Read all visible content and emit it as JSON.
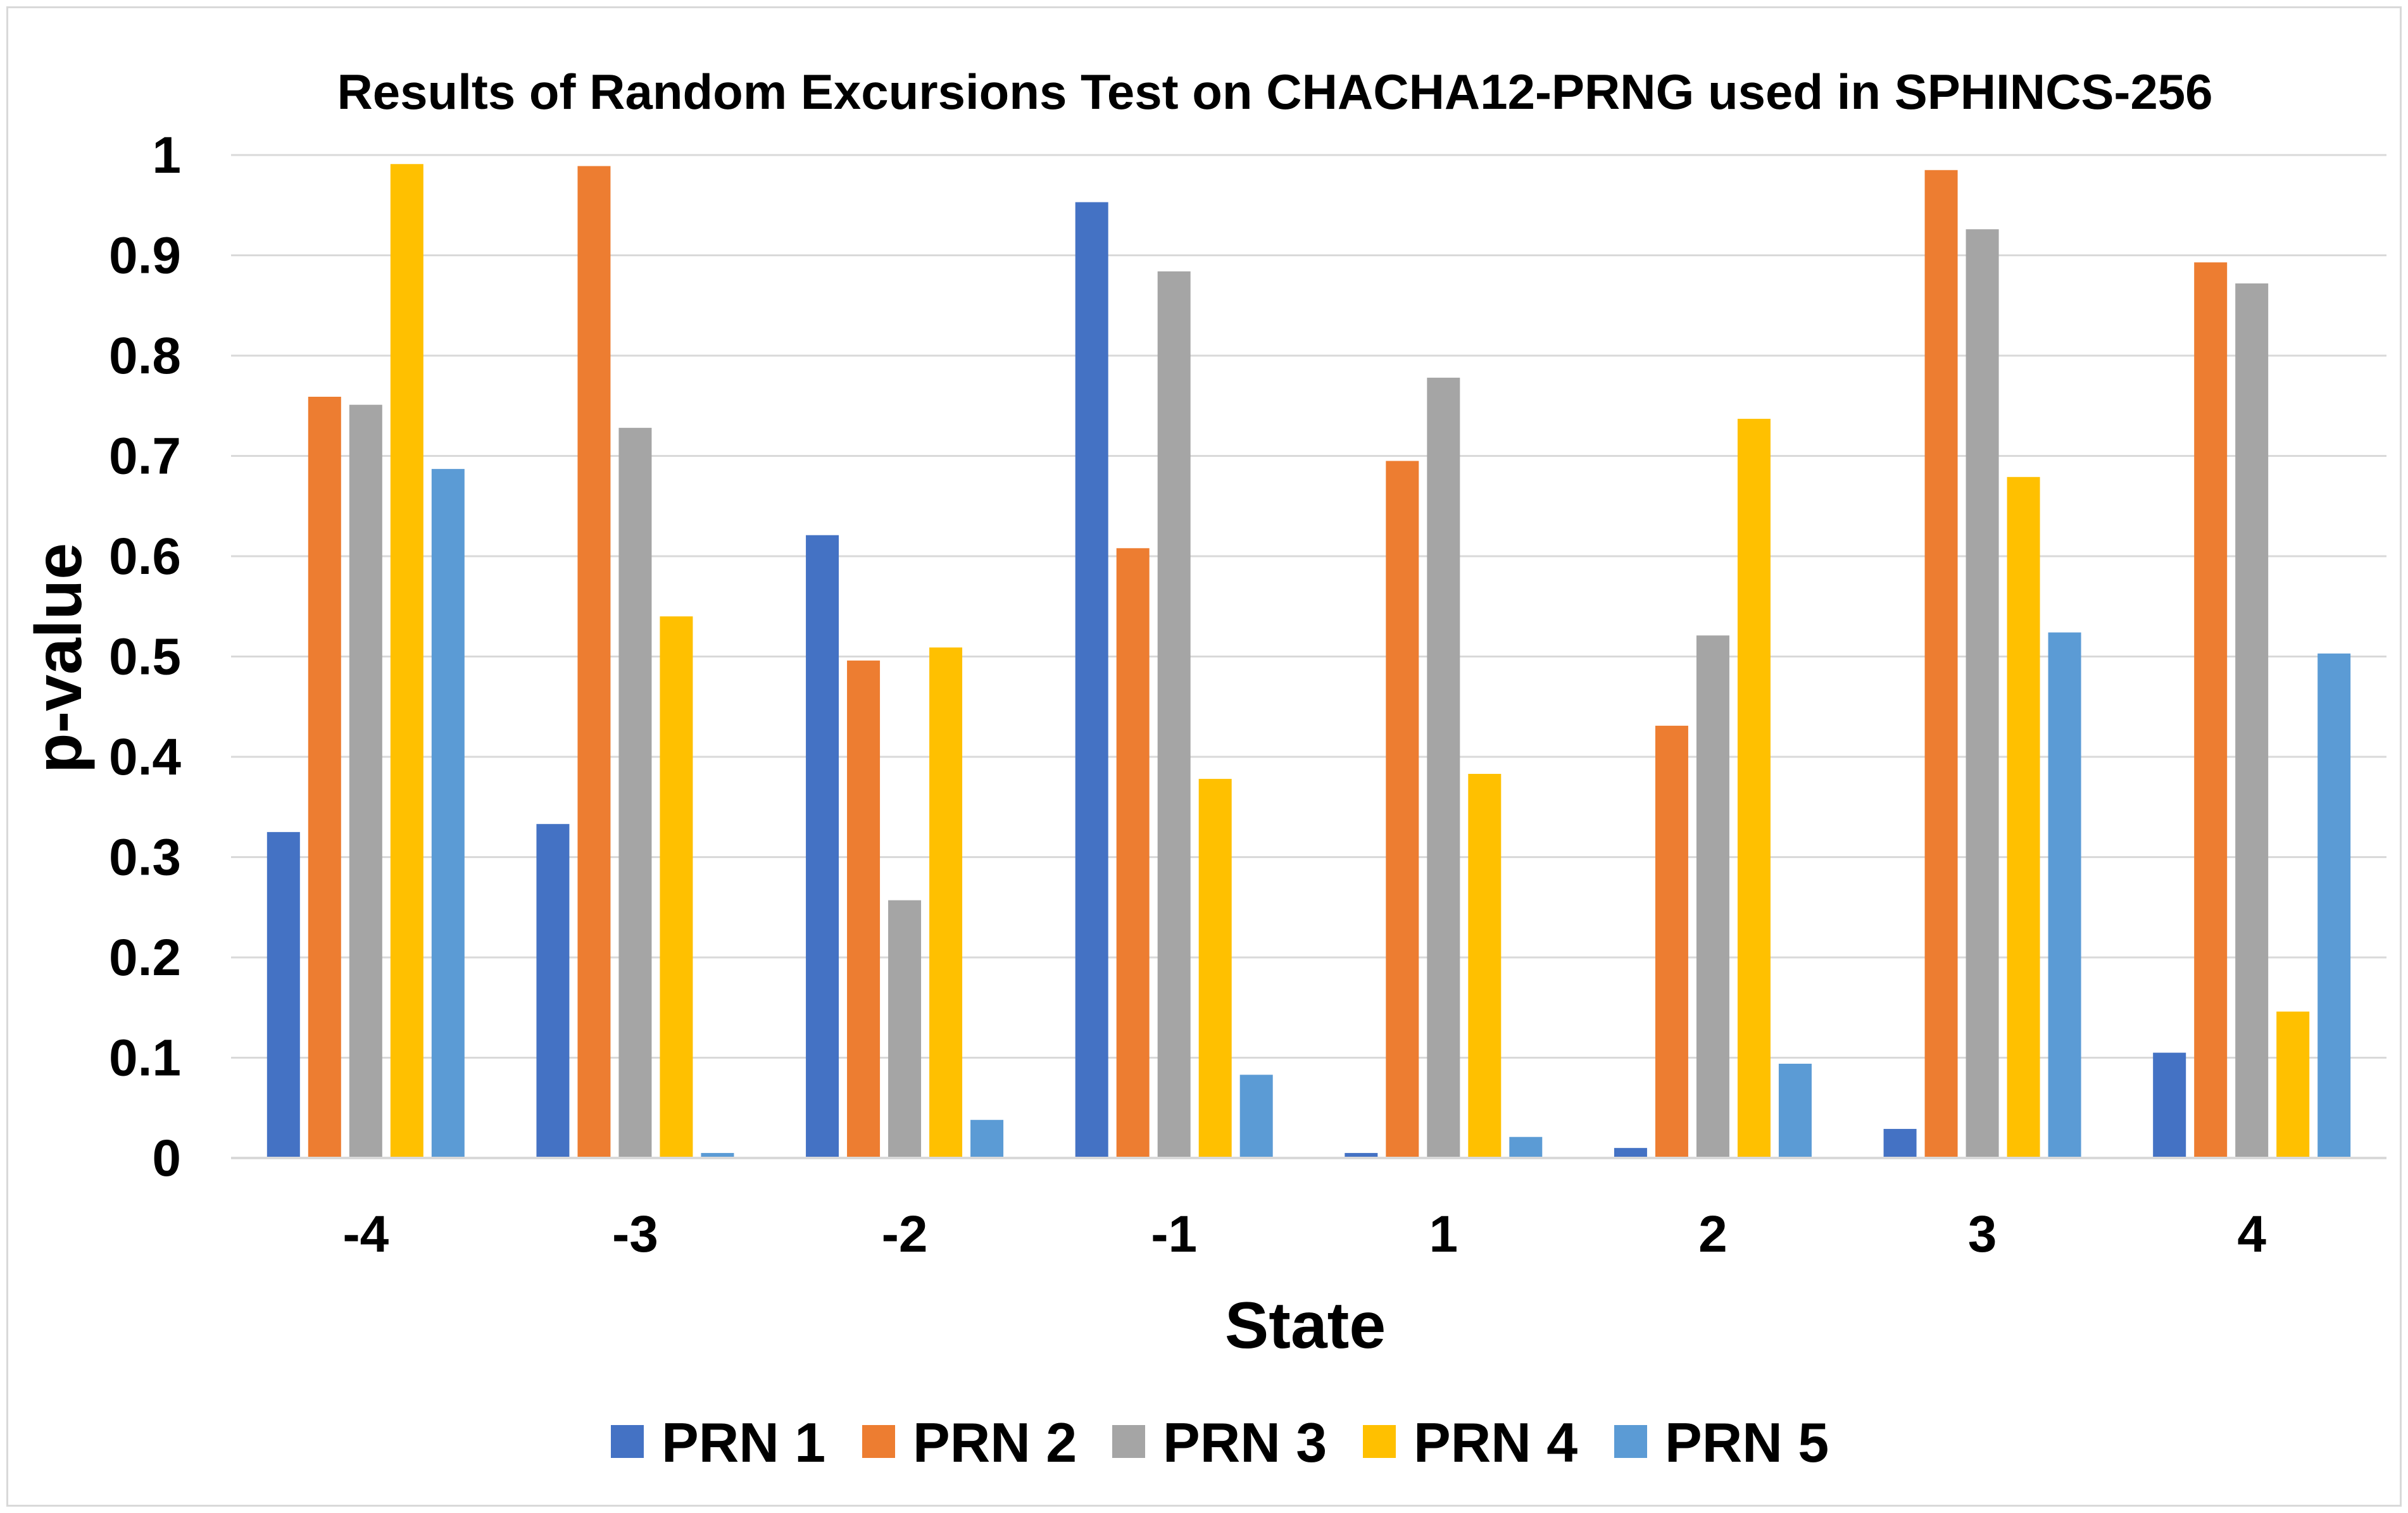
{
  "chart_data": {
    "type": "bar",
    "title": "Results of Random Excursions Test on CHACHA12-PRNG used in SPHINCS-256",
    "xlabel": "State",
    "ylabel": "p-value",
    "ylim": [
      0,
      1
    ],
    "yticks": [
      "0",
      "0.1",
      "0.2",
      "0.3",
      "0.4",
      "0.5",
      "0.6",
      "0.7",
      "0.8",
      "0.9",
      "1"
    ],
    "grid": true,
    "legend_position": "bottom",
    "categories": [
      "-4",
      "-3",
      "-2",
      "-1",
      "1",
      "2",
      "3",
      "4"
    ],
    "series": [
      {
        "name": "PRN 1",
        "color": "#4472C4",
        "values": [
          0.325,
          0.333,
          0.621,
          0.953,
          0.005,
          0.01,
          0.029,
          0.105
        ]
      },
      {
        "name": "PRN 2",
        "color": "#ED7D31",
        "values": [
          0.759,
          0.989,
          0.496,
          0.608,
          0.695,
          0.431,
          0.985,
          0.893
        ]
      },
      {
        "name": "PRN 3",
        "color": "#A5A5A5",
        "values": [
          0.751,
          0.728,
          0.257,
          0.884,
          0.778,
          0.521,
          0.926,
          0.872
        ]
      },
      {
        "name": "PRN 4",
        "color": "#FFC000",
        "values": [
          0.991,
          0.54,
          0.509,
          0.378,
          0.383,
          0.737,
          0.679,
          0.146
        ]
      },
      {
        "name": "PRN 5",
        "color": "#5B9BD5",
        "values": [
          0.687,
          0.005,
          0.038,
          0.083,
          0.021,
          0.094,
          0.524,
          0.503
        ]
      }
    ]
  }
}
